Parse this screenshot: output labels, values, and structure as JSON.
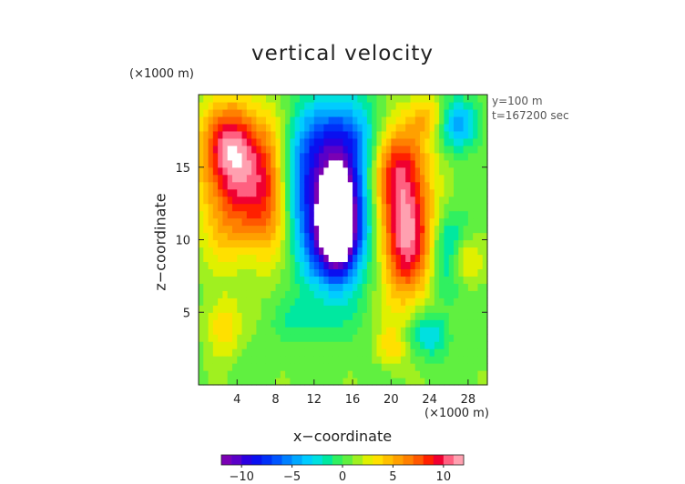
{
  "chart_data": {
    "type": "heatmap",
    "title": "vertical velocity",
    "xlabel": "x−coordinate",
    "ylabel": "z−coordinate",
    "x_unit_label": "(×1000 m)",
    "y_unit_label": "(×1000 m)",
    "annotations": [
      "y=100 m",
      "t=167200 sec"
    ],
    "xlim": [
      0,
      30
    ],
    "ylim": [
      0,
      20
    ],
    "x_ticks": [
      4,
      8,
      12,
      16,
      20,
      24,
      28
    ],
    "y_ticks": [
      5,
      10,
      15
    ],
    "x_tick_labels": [
      "4",
      "8",
      "12",
      "16",
      "20",
      "24",
      "28"
    ],
    "y_tick_labels": [
      "5",
      "10",
      "15"
    ],
    "colorbar": {
      "min": -12,
      "max": 12,
      "tick_values": [
        -10,
        -5,
        0,
        5,
        10
      ],
      "tick_labels": [
        "−10",
        "−5",
        "0",
        "5",
        "10"
      ],
      "colors": [
        "#7a00b4",
        "#5a00c8",
        "#2a00e0",
        "#0a10f0",
        "#0030f8",
        "#0055ff",
        "#0080ff",
        "#00a8ff",
        "#00ccff",
        "#00e0e0",
        "#00e8a0",
        "#30f060",
        "#60f040",
        "#a0f020",
        "#e0f000",
        "#ffe000",
        "#ffc000",
        "#ffa000",
        "#ff8000",
        "#ff5800",
        "#ff2000",
        "#f00030",
        "#ff6080",
        "#ffa0b0"
      ]
    },
    "fields": [
      {
        "x": 3.5,
        "z": 16.5,
        "amp": 9,
        "sx": 2.2,
        "sz": 2.2
      },
      {
        "x": 3.8,
        "z": 12.5,
        "amp": 6,
        "sx": 2.5,
        "sz": 2.8
      },
      {
        "x": 7.5,
        "z": 13.5,
        "amp": 6,
        "sx": 1.6,
        "sz": 3.2
      },
      {
        "x": 14.0,
        "z": 11.0,
        "amp": -10,
        "sx": 2.8,
        "sz": 3.0
      },
      {
        "x": 12.5,
        "z": 15.5,
        "amp": -7,
        "sx": 2.8,
        "sz": 2.8
      },
      {
        "x": 16.0,
        "z": 17.0,
        "amp": -5,
        "sx": 2.0,
        "sz": 2.0
      },
      {
        "x": 14.5,
        "z": 11.0,
        "amp": -14,
        "sx": 1.2,
        "sz": 2.0
      },
      {
        "x": 21.5,
        "z": 10.5,
        "amp": 11,
        "sx": 2.0,
        "sz": 3.2
      },
      {
        "x": 20.5,
        "z": 15.5,
        "amp": 6,
        "sx": 2.2,
        "sz": 2.2
      },
      {
        "x": 27.0,
        "z": 18.0,
        "amp": -5,
        "sx": 1.5,
        "sz": 1.2
      },
      {
        "x": 26.0,
        "z": 9.0,
        "amp": -4,
        "sx": 1.4,
        "sz": 2.2
      },
      {
        "x": 27.5,
        "z": 8.5,
        "amp": 4,
        "sx": 1.2,
        "sz": 1.2
      },
      {
        "x": 24.0,
        "z": 3.5,
        "amp": -4,
        "sx": 1.3,
        "sz": 1.0
      },
      {
        "x": 20.0,
        "z": 2.5,
        "amp": 3,
        "sx": 1.0,
        "sz": 1.0
      },
      {
        "x": 2.5,
        "z": 4.0,
        "amp": 3.5,
        "sx": 1.2,
        "sz": 1.5
      },
      {
        "x": 11.5,
        "z": 4.5,
        "amp": -2,
        "sx": 2.0,
        "sz": 1.0
      },
      {
        "x": 24.0,
        "z": 18.5,
        "amp": 3.5,
        "sx": 1.2,
        "sz": 1.0
      }
    ]
  }
}
